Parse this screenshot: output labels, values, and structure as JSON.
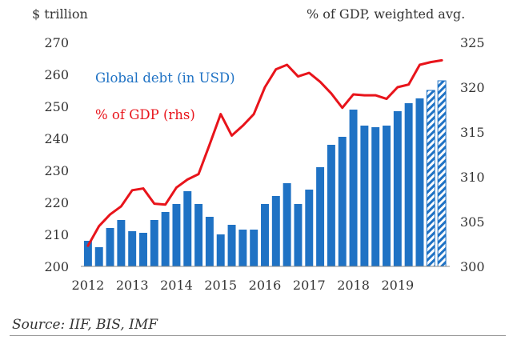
{
  "chart_data": {
    "type": "bar+line",
    "left_axis_title": "$ trillion",
    "right_axis_title": "% of GDP, weighted avg.",
    "left_ylim": [
      200,
      270
    ],
    "left_ticks": [
      200,
      210,
      220,
      230,
      240,
      250,
      260,
      270
    ],
    "right_ylim": [
      300,
      325
    ],
    "right_ticks": [
      300,
      305,
      310,
      315,
      320,
      325
    ],
    "x_tick_labels": [
      "2012",
      "2013",
      "2014",
      "2015",
      "2016",
      "2017",
      "2018",
      "2019"
    ],
    "bar_color": "#1f72c4",
    "line_color": "#e8141b",
    "series": [
      {
        "name": "Global debt (in USD)",
        "axis": "left",
        "values": [
          208,
          206,
          212,
          214.5,
          211,
          210.5,
          214.5,
          217,
          219.5,
          223.5,
          219.5,
          215.5,
          210,
          213,
          211.5,
          211.5,
          219.5,
          222,
          226,
          219.5,
          224,
          231,
          238,
          240.5,
          249,
          244,
          243.5,
          244,
          248.5,
          251,
          252.5,
          255,
          258
        ],
        "estimated_from_index": 31
      },
      {
        "name": "% of GDP (rhs)",
        "axis": "right",
        "values": [
          302.3,
          304.5,
          305.8,
          306.7,
          308.5,
          308.7,
          307,
          306.9,
          308.8,
          309.7,
          310.3,
          313.6,
          317,
          314.6,
          315.7,
          317,
          320,
          322,
          322.5,
          321.2,
          321.6,
          320.6,
          319.3,
          317.7,
          319.2,
          319.1,
          319.1,
          318.7,
          320,
          320.3,
          322.5,
          322.8,
          323
        ]
      }
    ]
  },
  "source": "Source: IIF, BIS, IMF"
}
